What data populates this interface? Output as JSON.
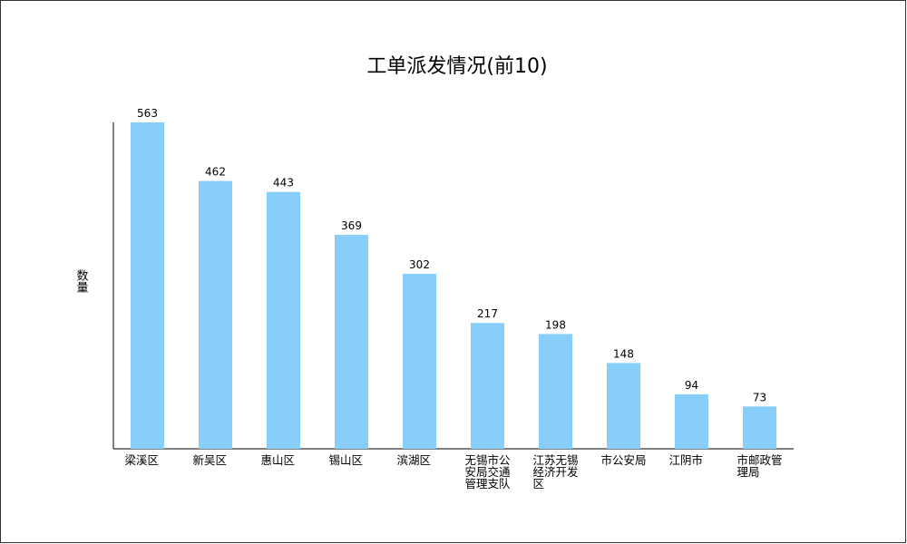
{
  "chart_data": {
    "type": "bar",
    "title": "工单派发情况(前10)",
    "y_label": "数量",
    "categories": [
      "梁溪区",
      "新吴区",
      "惠山区",
      "锡山区",
      "滨湖区",
      "无锡市公安局交通管理支队",
      "江苏无锡经济开发区",
      "市公安局",
      "江阴市",
      "市邮政管理局"
    ],
    "values": [
      563,
      462,
      443,
      369,
      302,
      217,
      198,
      148,
      94,
      73
    ],
    "color": "#87cefa",
    "ylim": [
      0,
      563
    ]
  }
}
